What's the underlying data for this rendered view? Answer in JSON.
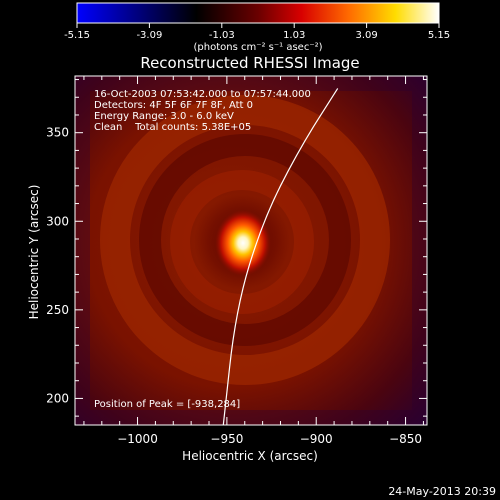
{
  "colorbar": {
    "ticks": [
      "-5.15",
      "-3.09",
      "-1.03",
      "1.03",
      "3.09",
      "5.15"
    ],
    "units": "(photons cm⁻² s⁻¹ asec⁻²)",
    "colors": [
      "#0000ff",
      "#000000",
      "#8b0000",
      "#ff0000",
      "#ff8c00",
      "#ffff00",
      "#ffffff"
    ]
  },
  "image": {
    "title": "Reconstructed RHESSI Image",
    "info_lines": [
      "16-Oct-2003 07:53:42.000 to 07:57:44.000",
      "Detectors: 4F 5F 6F 7F 8F, Att 0",
      "Energy Range: 3.0 - 6.0 keV",
      "Clean    Total counts: 5.38E+05"
    ],
    "peak_text": "Position of Peak = [-938,284]",
    "peak_position": [
      -938,
      284
    ],
    "limb_curve": [
      [
        -952,
        185
      ],
      [
        -945,
        250
      ],
      [
        -930,
        300
      ],
      [
        -910,
        340
      ],
      [
        -888,
        375
      ]
    ],
    "x_axis": {
      "label": "Heliocentric X (arcsec)",
      "ticks": [
        {
          "value": -1000,
          "label": "−1000"
        },
        {
          "value": -950,
          "label": "−950"
        },
        {
          "value": -900,
          "label": "−900"
        },
        {
          "value": -850,
          "label": "−850"
        }
      ],
      "range": [
        -1035,
        -838
      ]
    },
    "y_axis": {
      "label": "Heliocentric Y (arcsec)",
      "ticks": [
        {
          "value": 200,
          "label": "200"
        },
        {
          "value": 250,
          "label": "250"
        },
        {
          "value": 300,
          "label": "300"
        },
        {
          "value": 350,
          "label": "350"
        }
      ],
      "range": [
        185,
        382
      ]
    }
  },
  "footer": {
    "timestamp": "24-May-2013 20:39"
  }
}
